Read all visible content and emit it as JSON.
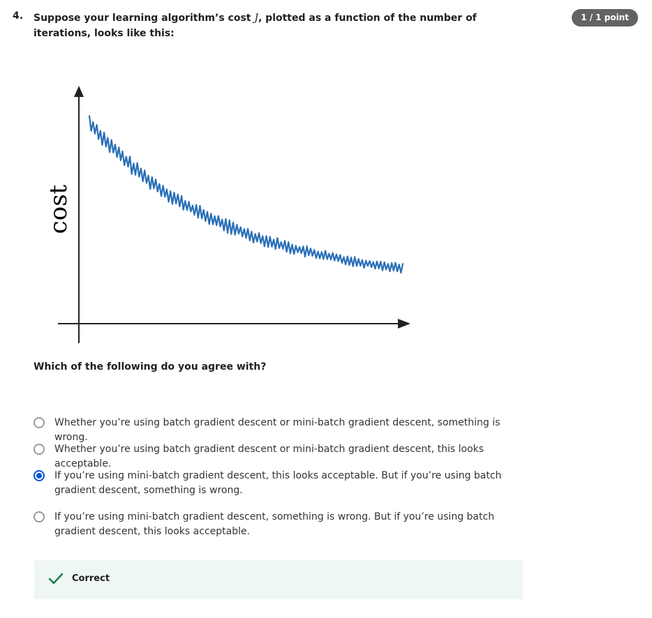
{
  "question": {
    "number": "4.",
    "text_before": "Suppose your learning algorithm’s cost ",
    "math_symbol": "J",
    "text_after": ", plotted as a function of the number of iterations, looks like this:",
    "points": "1 / 1 point"
  },
  "figure": {
    "ylabel": "cost",
    "line_color": "#2a6fb8"
  },
  "prompt": "Which of the following do you agree with?",
  "options": [
    {
      "label": "Whether you’re using batch gradient descent or mini-batch gradient descent, something is wrong.",
      "selected": false
    },
    {
      "label": "Whether you’re using batch gradient descent or mini-batch gradient descent, this looks acceptable.",
      "selected": false
    },
    {
      "label": "If you’re using mini-batch gradient descent, this looks acceptable. But if you’re using batch gradient descent, something is wrong.",
      "selected": true
    },
    {
      "label": "If you’re using mini-batch gradient descent, something is wrong. But if you’re using batch gradient descent, this looks acceptable.",
      "selected": false
    }
  ],
  "feedback": {
    "status": "Correct",
    "color": "#1d7c50"
  }
}
